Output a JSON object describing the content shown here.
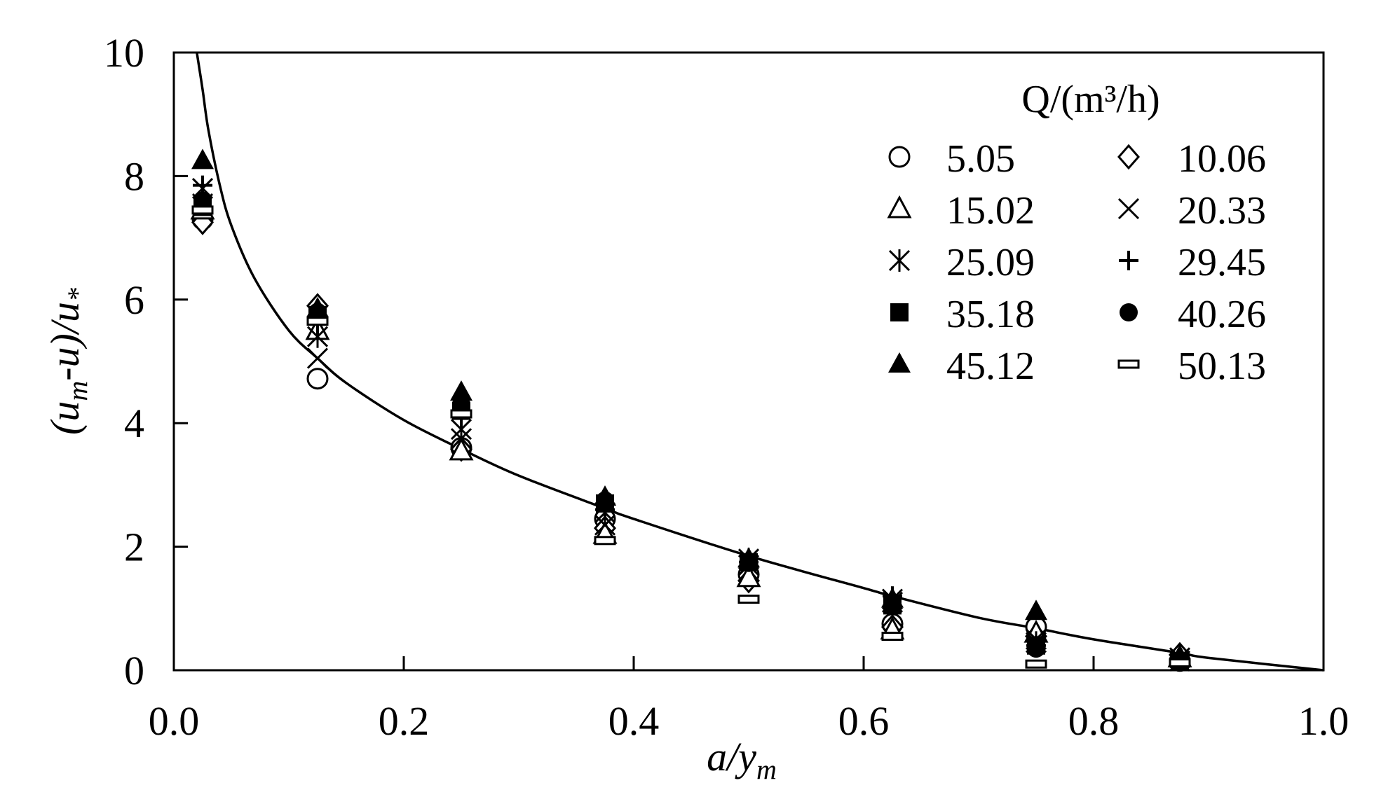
{
  "chart_data": {
    "type": "scatter",
    "xlabel": "a/ym",
    "ylabel": "(um-u)/u*",
    "xlim": [
      0.0,
      1.0
    ],
    "ylim": [
      0,
      10
    ],
    "x_ticks": [
      "0.0",
      "0.2",
      "0.4",
      "0.6",
      "0.8",
      "1.0"
    ],
    "y_ticks": [
      "0",
      "2",
      "4",
      "6",
      "8",
      "10"
    ],
    "grid": false,
    "legend": {
      "title": "Q/(m³/h)",
      "placement": "top-right"
    },
    "x": [
      0.025,
      0.125,
      0.25,
      0.375,
      0.5,
      0.625,
      0.75,
      0.875
    ],
    "series": [
      {
        "name": "5.05",
        "marker": "circle-open",
        "values": [
          7.3,
          4.72,
          3.6,
          2.45,
          1.55,
          0.75,
          0.7,
          0.15
        ]
      },
      {
        "name": "10.06",
        "marker": "diamond-open",
        "values": [
          7.25,
          5.9,
          3.58,
          2.3,
          1.45,
          0.7,
          0.55,
          0.25
        ]
      },
      {
        "name": "15.02",
        "marker": "triangle-open",
        "values": [
          7.45,
          5.5,
          3.55,
          2.2,
          1.5,
          0.65,
          0.6,
          0.2
        ]
      },
      {
        "name": "20.33",
        "marker": "x",
        "values": [
          7.55,
          5.05,
          3.75,
          2.35,
          1.7,
          1.1,
          0.5,
          0.15
        ]
      },
      {
        "name": "25.09",
        "marker": "asterisk",
        "values": [
          7.8,
          5.4,
          3.9,
          2.55,
          1.8,
          1.15,
          0.45,
          0.2
        ]
      },
      {
        "name": "29.45",
        "marker": "plus",
        "values": [
          7.85,
          5.6,
          4.1,
          2.6,
          1.75,
          1.2,
          0.4,
          0.18
        ]
      },
      {
        "name": "35.18",
        "marker": "square-filled",
        "values": [
          7.5,
          5.75,
          4.2,
          2.7,
          1.75,
          1.05,
          0.4,
          0.15
        ]
      },
      {
        "name": "40.26",
        "marker": "circle-filled",
        "values": [
          7.6,
          5.8,
          4.3,
          2.75,
          1.75,
          1.1,
          0.35,
          0.15
        ]
      },
      {
        "name": "45.12",
        "marker": "triangle-filled",
        "values": [
          8.25,
          5.85,
          4.5,
          2.8,
          1.8,
          1.15,
          0.95,
          0.22
        ]
      },
      {
        "name": "50.13",
        "marker": "bar-open",
        "values": [
          7.45,
          5.65,
          4.15,
          2.1,
          1.15,
          0.55,
          0.1,
          0.12
        ]
      }
    ],
    "fit_curve": {
      "x": [
        0.02,
        0.025,
        0.03,
        0.04,
        0.05,
        0.07,
        0.1,
        0.125,
        0.15,
        0.2,
        0.25,
        0.3,
        0.375,
        0.4,
        0.5,
        0.6,
        0.625,
        0.7,
        0.75,
        0.8,
        0.875,
        0.9,
        1.0
      ],
      "y": [
        10.2,
        9.4,
        8.75,
        7.85,
        7.2,
        6.35,
        5.5,
        5.05,
        4.65,
        4.05,
        3.58,
        3.15,
        2.62,
        2.45,
        1.85,
        1.33,
        1.2,
        0.85,
        0.68,
        0.5,
        0.28,
        0.2,
        0.0
      ]
    }
  }
}
